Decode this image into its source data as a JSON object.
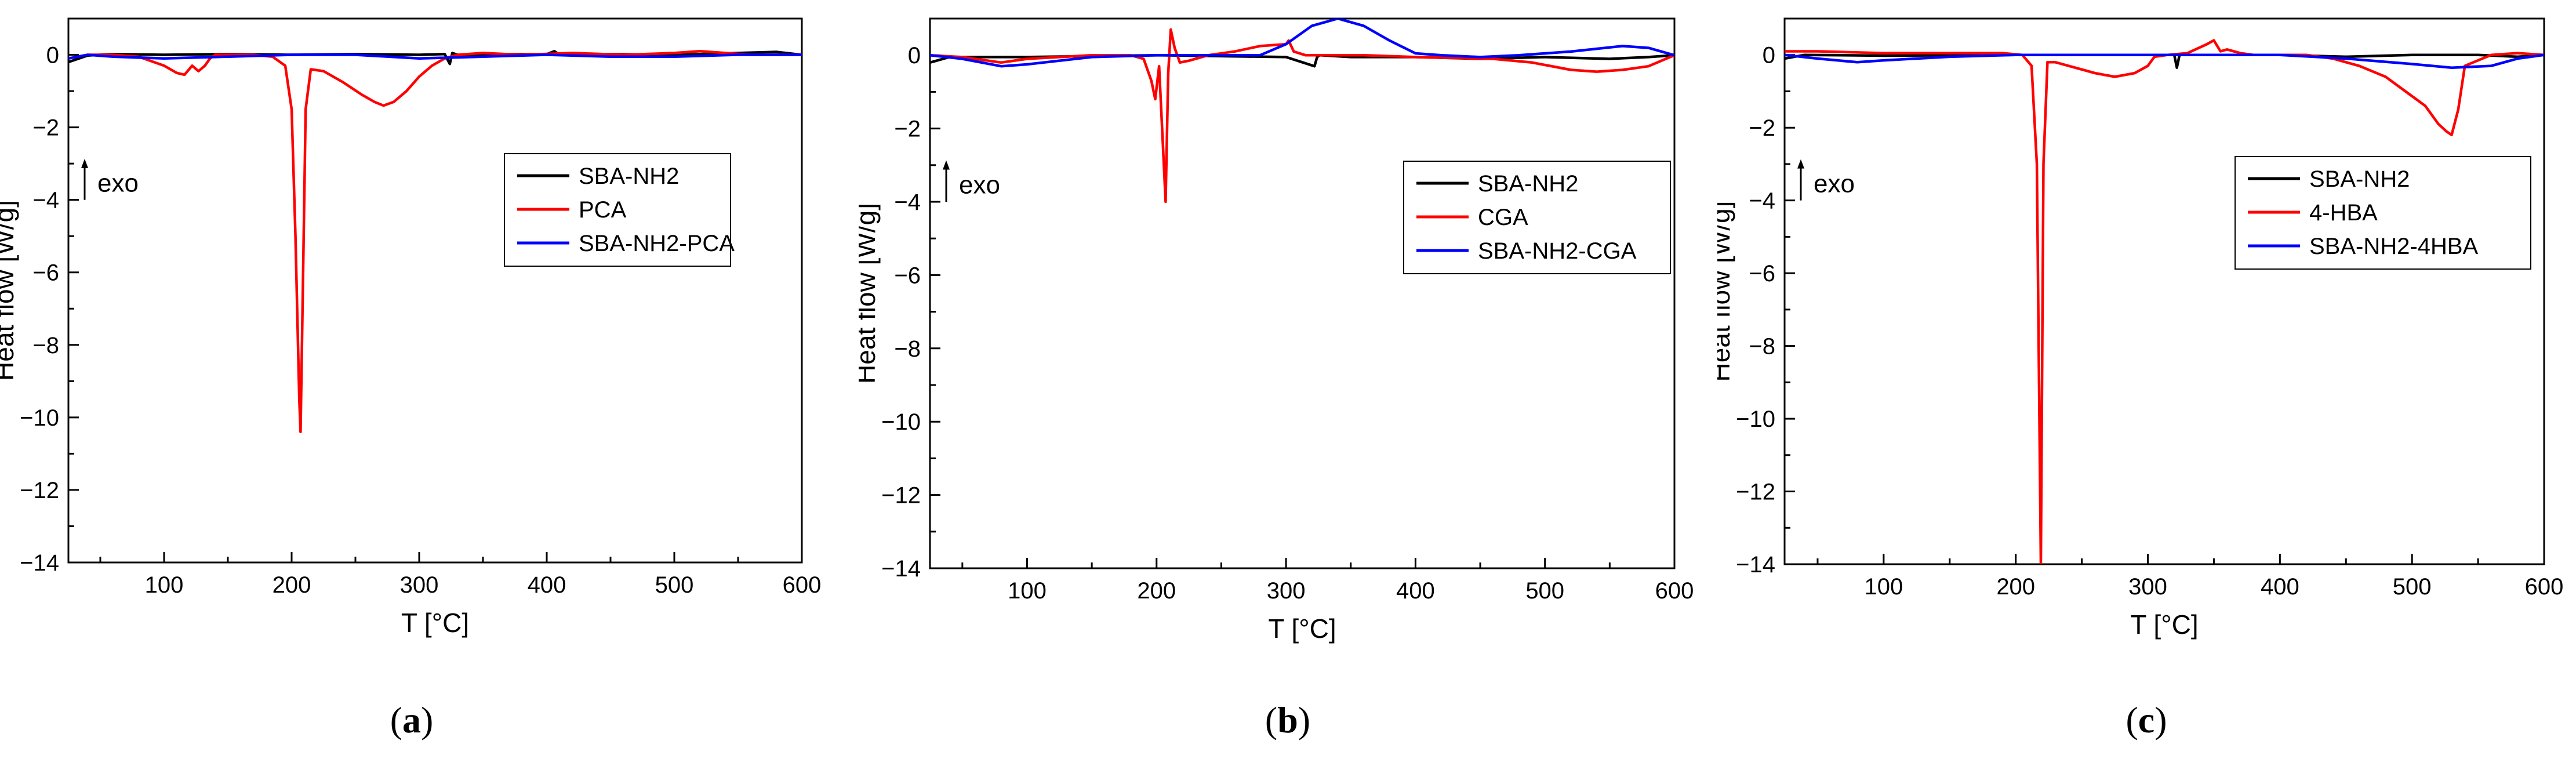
{
  "figure": {
    "captions": [
      {
        "open": "(",
        "letter": "a",
        "close": ")"
      },
      {
        "open": "(",
        "letter": "b",
        "close": ")"
      },
      {
        "open": "(",
        "letter": "c",
        "close": ")"
      }
    ],
    "exo_label": "exo"
  },
  "colors": {
    "black": "#000000",
    "red": "#ff0000",
    "blue": "#0000ff"
  },
  "chart_data": [
    {
      "type": "line",
      "title": "",
      "xlabel": "T [°C]",
      "ylabel": "Heat flow [W/g]",
      "xlim": [
        25,
        600
      ],
      "ylim": [
        -14,
        1
      ],
      "xticks": [
        100,
        200,
        300,
        400,
        500,
        600
      ],
      "yticks": [
        0,
        -2,
        -4,
        -6,
        -8,
        -10,
        -12,
        -14
      ],
      "legend_position": "center-right",
      "series": [
        {
          "name": "SBA-NH2",
          "color": "#000000",
          "x": [
            25,
            40,
            60,
            100,
            150,
            200,
            250,
            300,
            320,
            324,
            326,
            330,
            360,
            400,
            406,
            410,
            450,
            500,
            550,
            580,
            600
          ],
          "y": [
            -0.2,
            -0.02,
            0.02,
            0,
            0.02,
            0,
            0.02,
            0,
            0.02,
            -0.25,
            0.05,
            0,
            0.02,
            0.02,
            0.1,
            0,
            0.02,
            0,
            0.05,
            0.08,
            0
          ]
        },
        {
          "name": "PCA",
          "color": "#ff0000",
          "x": [
            40,
            60,
            80,
            100,
            110,
            116,
            122,
            127,
            132,
            136,
            140,
            150,
            170,
            185,
            195,
            200,
            203,
            206,
            207,
            209,
            211,
            215,
            225,
            240,
            255,
            265,
            272,
            280,
            290,
            300,
            310,
            320,
            330,
            350,
            380,
            420,
            460,
            500,
            520,
            540,
            560,
            580,
            600
          ],
          "y": [
            0,
            0,
            -0.05,
            -0.3,
            -0.5,
            -0.55,
            -0.3,
            -0.45,
            -0.3,
            -0.1,
            0,
            0,
            0,
            -0.05,
            -0.3,
            -1.5,
            -5,
            -9.5,
            -10.4,
            -6,
            -1.5,
            -0.4,
            -0.45,
            -0.75,
            -1.1,
            -1.3,
            -1.4,
            -1.3,
            -1.0,
            -0.6,
            -0.3,
            -0.1,
            0,
            0.05,
            0,
            0.05,
            0,
            0.05,
            0.1,
            0.05,
            0,
            0,
            0
          ]
        },
        {
          "name": "SBA-NH2-PCA",
          "color": "#0000ff",
          "x": [
            25,
            40,
            60,
            100,
            150,
            200,
            250,
            300,
            350,
            400,
            450,
            500,
            550,
            600
          ],
          "y": [
            -0.1,
            0,
            -0.05,
            -0.1,
            -0.05,
            0,
            0,
            -0.1,
            -0.05,
            0,
            -0.05,
            -0.05,
            0,
            0
          ]
        }
      ]
    },
    {
      "type": "line",
      "title": "",
      "xlabel": "T [°C]",
      "ylabel": "Heat flow [W/g]",
      "xlim": [
        25,
        600
      ],
      "ylim": [
        -14,
        1
      ],
      "xticks": [
        100,
        200,
        300,
        400,
        500,
        600
      ],
      "yticks": [
        0,
        -2,
        -4,
        -6,
        -8,
        -10,
        -12,
        -14
      ],
      "legend_position": "center-right",
      "series": [
        {
          "name": "SBA-NH2",
          "color": "#000000",
          "x": [
            25,
            40,
            100,
            200,
            300,
            322,
            324,
            326,
            350,
            400,
            450,
            500,
            550,
            580,
            600
          ],
          "y": [
            -0.2,
            -0.05,
            -0.05,
            0,
            -0.05,
            -0.3,
            -0.05,
            0,
            -0.05,
            -0.05,
            -0.1,
            -0.05,
            -0.1,
            -0.05,
            0
          ]
        },
        {
          "name": "CGA",
          "color": "#ff0000",
          "x": [
            25,
            50,
            80,
            100,
            150,
            180,
            190,
            196,
            199,
            202,
            205,
            207,
            209,
            211,
            214,
            218,
            225,
            240,
            260,
            280,
            300,
            302,
            306,
            315,
            330,
            360,
            400,
            460,
            490,
            520,
            540,
            560,
            580,
            600
          ],
          "y": [
            0,
            -0.05,
            -0.2,
            -0.1,
            0,
            0,
            -0.1,
            -0.7,
            -1.2,
            -0.3,
            -2.5,
            -4.0,
            -0.5,
            0.7,
            0.2,
            -0.2,
            -0.15,
            0,
            0.1,
            0.25,
            0.3,
            0.4,
            0.1,
            0,
            0,
            0,
            -0.05,
            -0.1,
            -0.2,
            -0.4,
            -0.45,
            -0.4,
            -0.3,
            0
          ]
        },
        {
          "name": "SBA-NH2-CGA",
          "color": "#0000ff",
          "x": [
            25,
            50,
            80,
            100,
            150,
            200,
            250,
            280,
            300,
            320,
            340,
            360,
            380,
            400,
            420,
            450,
            480,
            520,
            560,
            580,
            600
          ],
          "y": [
            0,
            -0.1,
            -0.3,
            -0.25,
            -0.05,
            0,
            0,
            0,
            0.3,
            0.8,
            1.0,
            0.8,
            0.4,
            0.05,
            0,
            -0.05,
            0,
            0.1,
            0.25,
            0.2,
            0
          ]
        }
      ]
    },
    {
      "type": "line",
      "title": "",
      "xlabel": "T [°C]",
      "ylabel": "Heat flow [W/g]",
      "xlim": [
        25,
        600
      ],
      "ylim": [
        -14,
        1
      ],
      "xticks": [
        100,
        200,
        300,
        400,
        500,
        600
      ],
      "yticks": [
        0,
        -2,
        -4,
        -6,
        -8,
        -10,
        -12,
        -14
      ],
      "legend_position": "center-right",
      "series": [
        {
          "name": "SBA-NH2",
          "color": "#000000",
          "x": [
            25,
            40,
            100,
            200,
            300,
            320,
            322,
            324,
            330,
            380,
            400,
            450,
            500,
            550,
            580,
            600
          ],
          "y": [
            -0.1,
            0,
            -0.02,
            0,
            0,
            0,
            -0.35,
            0,
            0,
            0,
            0,
            -0.05,
            0,
            0,
            -0.05,
            0
          ]
        },
        {
          "name": "4-HBA",
          "color": "#ff0000",
          "x": [
            25,
            50,
            100,
            150,
            190,
            205,
            212,
            216,
            219,
            221,
            224,
            230,
            245,
            260,
            275,
            290,
            300,
            305,
            315,
            330,
            345,
            350,
            355,
            360,
            370,
            380,
            400,
            420,
            440,
            460,
            480,
            495,
            510,
            520,
            526,
            530,
            535,
            540,
            560,
            580,
            600
          ],
          "y": [
            0.1,
            0.1,
            0.05,
            0.05,
            0.05,
            0,
            -0.3,
            -3,
            -14,
            -3,
            -0.2,
            -0.2,
            -0.35,
            -0.5,
            -0.6,
            -0.5,
            -0.3,
            -0.05,
            0,
            0.05,
            0.3,
            0.4,
            0.1,
            0.15,
            0.05,
            0,
            0,
            0,
            -0.1,
            -0.3,
            -0.6,
            -1.0,
            -1.4,
            -1.9,
            -2.1,
            -2.2,
            -1.5,
            -0.3,
            0,
            0.05,
            0
          ]
        },
        {
          "name": "SBA-NH2-4HBA",
          "color": "#0000ff",
          "x": [
            25,
            50,
            80,
            100,
            150,
            200,
            250,
            300,
            350,
            400,
            450,
            500,
            530,
            560,
            580,
            600
          ],
          "y": [
            0,
            -0.1,
            -0.2,
            -0.15,
            -0.05,
            0,
            0,
            0,
            0,
            0,
            -0.1,
            -0.25,
            -0.35,
            -0.3,
            -0.1,
            0
          ]
        }
      ]
    }
  ]
}
